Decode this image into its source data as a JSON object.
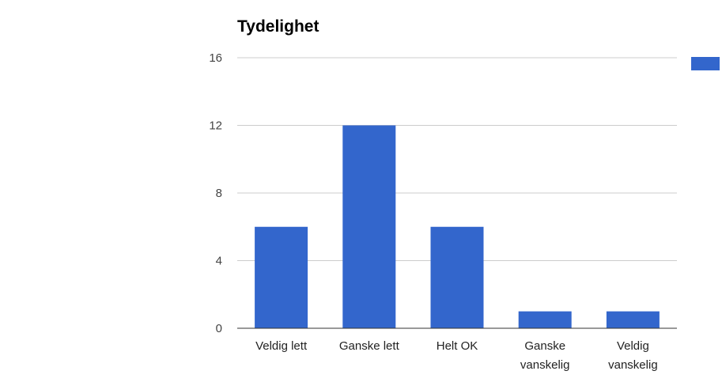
{
  "chart_data": {
    "type": "bar",
    "title": "Tydelighet",
    "categories": [
      [
        "Veldig lett"
      ],
      [
        "Ganske lett"
      ],
      [
        "Helt OK"
      ],
      [
        "Ganske",
        "vanskelig"
      ],
      [
        "Veldig",
        "vanskelig"
      ]
    ],
    "values": [
      6,
      12,
      6,
      1,
      1
    ],
    "ylim": [
      0,
      16
    ],
    "yticks": [
      "0",
      "4",
      "8",
      "12",
      "16"
    ],
    "grid": true,
    "legend_position": "right",
    "colors": {
      "bar": "#3366cc",
      "grid": "#cccccc",
      "axis": "#333333"
    }
  }
}
